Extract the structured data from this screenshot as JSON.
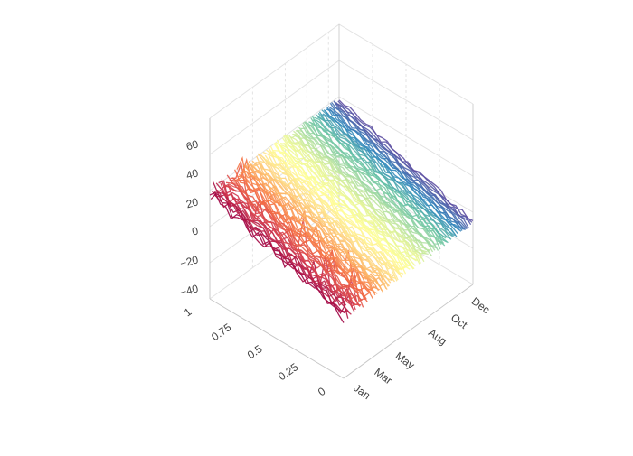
{
  "chart_data": {
    "type": "line3d",
    "title": "",
    "description": "Many daily time-series lines plotted in 3D, each line colored by its position along the year axis (Spectral colorscale).",
    "axes": {
      "x": {
        "label": "",
        "type": "date",
        "tick_labels": [
          "Jan",
          "Mar",
          "May",
          "Aug",
          "Oct",
          "Dec"
        ],
        "tick_dates": [
          "2016-01-01",
          "2016-03-01",
          "2016-05-01",
          "2016-08-01",
          "2016-10-01",
          "2016-12-01"
        ],
        "range": [
          "2016-01-01",
          "2016-12-31"
        ]
      },
      "y": {
        "label": "",
        "tick_labels": [
          "0",
          "0.25",
          "0.5",
          "0.75",
          "1"
        ],
        "range": [
          0,
          1
        ]
      },
      "z": {
        "label": "",
        "tick_labels": [
          "−40",
          "−20",
          "0",
          "20",
          "40",
          "60"
        ],
        "range": [
          -45,
          70
        ]
      }
    },
    "series_summary": {
      "count": 120,
      "points_per_series": 26,
      "y_range": [
        0,
        1
      ],
      "typical_value_range": [
        -30,
        30
      ],
      "trend": "values decrease from y=1 toward y=0; early-year lines are noisier with spikes up to about 60"
    },
    "colorscale": [
      "#9e0142",
      "#d53e4f",
      "#f46d43",
      "#fdae61",
      "#fee08b",
      "#ffff99",
      "#e6f598",
      "#abdda4",
      "#66c2a5",
      "#3288bd",
      "#5e4fa2"
    ],
    "grid": true,
    "legend": "none"
  }
}
